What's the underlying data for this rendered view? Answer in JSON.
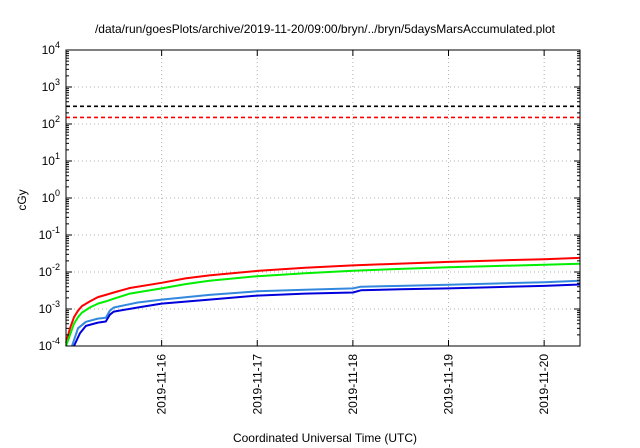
{
  "chart_data": {
    "type": "line",
    "title": "/data/run/goesPlots/archive/2019-11-20/09:00/bryn/../bryn/5daysMarsAccumulated.plot",
    "xlabel": "Coordinated Universal Time (UTC)",
    "ylabel": "cGy",
    "xscale": "time",
    "yscale": "log",
    "xlim": [
      "2019-11-15T00:00",
      "2019-11-20T09:00"
    ],
    "ylim": [
      0.0001,
      10000
    ],
    "grid": true,
    "x_ticks": [
      "2019-11-16",
      "2019-11-17",
      "2019-11-18",
      "2019-11-19",
      "2019-11-20"
    ],
    "y_ticks": [
      {
        "value": 0.0001,
        "base": "10",
        "exp": "-4"
      },
      {
        "value": 0.001,
        "base": "10",
        "exp": "-3"
      },
      {
        "value": 0.01,
        "base": "10",
        "exp": "-2"
      },
      {
        "value": 0.1,
        "base": "10",
        "exp": "-1"
      },
      {
        "value": 1,
        "base": "10",
        "exp": "0"
      },
      {
        "value": 10,
        "base": "10",
        "exp": "1"
      },
      {
        "value": 100,
        "base": "10",
        "exp": "2"
      },
      {
        "value": 1000,
        "base": "10",
        "exp": "3"
      },
      {
        "value": 10000,
        "base": "10",
        "exp": "4"
      }
    ],
    "reference_lines": [
      {
        "y": 300,
        "color": "#000000",
        "style": "dashed"
      },
      {
        "y": 150,
        "color": "#ff0000",
        "style": "dashed"
      }
    ],
    "series": [
      {
        "color": "#ff0000",
        "x": [
          "2019-11-15T00:00",
          "2019-11-15T01:00",
          "2019-11-15T02:00",
          "2019-11-15T03:00",
          "2019-11-15T04:00",
          "2019-11-15T06:00",
          "2019-11-15T08:00",
          "2019-11-15T10:00",
          "2019-11-15T12:00",
          "2019-11-15T16:00",
          "2019-11-16T00:00",
          "2019-11-16T06:00",
          "2019-11-16T12:00",
          "2019-11-17T00:00",
          "2019-11-17T12:00",
          "2019-11-18T00:00",
          "2019-11-18T12:00",
          "2019-11-19T00:00",
          "2019-11-19T12:00",
          "2019-11-20T00:00",
          "2019-11-20T09:00"
        ],
        "y": [
          0.00012,
          0.0003,
          0.0006,
          0.0009,
          0.0012,
          0.0016,
          0.0021,
          0.0024,
          0.0028,
          0.0037,
          0.0051,
          0.0067,
          0.0081,
          0.0107,
          0.013,
          0.0151,
          0.0169,
          0.0188,
          0.0204,
          0.0222,
          0.024
        ]
      },
      {
        "color": "#00ee00",
        "x": [
          "2019-11-15T00:00",
          "2019-11-15T01:00",
          "2019-11-15T02:00",
          "2019-11-15T03:00",
          "2019-11-15T04:00",
          "2019-11-15T06:00",
          "2019-11-15T08:00",
          "2019-11-15T10:00",
          "2019-11-15T12:00",
          "2019-11-15T16:00",
          "2019-11-16T00:00",
          "2019-11-16T06:00",
          "2019-11-16T12:00",
          "2019-11-17T00:00",
          "2019-11-17T12:00",
          "2019-11-18T00:00",
          "2019-11-18T12:00",
          "2019-11-19T00:00",
          "2019-11-19T12:00",
          "2019-11-20T00:00",
          "2019-11-20T09:00"
        ],
        "y": [
          0.0001,
          0.0002,
          0.0004,
          0.0006,
          0.0008,
          0.0011,
          0.0014,
          0.0016,
          0.0019,
          0.0026,
          0.0036,
          0.0047,
          0.0058,
          0.0077,
          0.0093,
          0.0108,
          0.0121,
          0.0134,
          0.0145,
          0.0157,
          0.0168
        ]
      },
      {
        "color": "#3388dd",
        "x": [
          "2019-11-15T01:30",
          "2019-11-15T03:00",
          "2019-11-15T05:00",
          "2019-11-15T08:00",
          "2019-11-15T10:00",
          "2019-11-15T11:00",
          "2019-11-15T12:00",
          "2019-11-15T18:00",
          "2019-11-16T00:00",
          "2019-11-16T12:00",
          "2019-11-17T00:00",
          "2019-11-17T12:00",
          "2019-11-18T00:00",
          "2019-11-18T02:00",
          "2019-11-18T12:00",
          "2019-11-19T00:00",
          "2019-11-19T12:00",
          "2019-11-20T00:00",
          "2019-11-20T09:00"
        ],
        "y": [
          0.0001,
          0.0003,
          0.00045,
          0.00055,
          0.00058,
          0.0009,
          0.0011,
          0.0015,
          0.0018,
          0.0024,
          0.003,
          0.0033,
          0.0036,
          0.004,
          0.0042,
          0.0045,
          0.0049,
          0.0053,
          0.0058
        ]
      },
      {
        "color": "#0000dd",
        "x": [
          "2019-11-15T02:00",
          "2019-11-15T03:30",
          "2019-11-15T05:00",
          "2019-11-15T08:00",
          "2019-11-15T10:00",
          "2019-11-15T11:00",
          "2019-11-15T12:00",
          "2019-11-15T18:00",
          "2019-11-16T00:00",
          "2019-11-16T12:00",
          "2019-11-17T00:00",
          "2019-11-17T12:00",
          "2019-11-18T00:00",
          "2019-11-18T02:00",
          "2019-11-18T12:00",
          "2019-11-19T00:00",
          "2019-11-19T12:00",
          "2019-11-20T00:00",
          "2019-11-20T09:00"
        ],
        "y": [
          0.0001,
          0.00022,
          0.00035,
          0.00043,
          0.00046,
          0.0007,
          0.00085,
          0.0011,
          0.0014,
          0.0018,
          0.0023,
          0.0026,
          0.0028,
          0.0032,
          0.0034,
          0.0036,
          0.0039,
          0.0042,
          0.0046
        ]
      }
    ]
  }
}
